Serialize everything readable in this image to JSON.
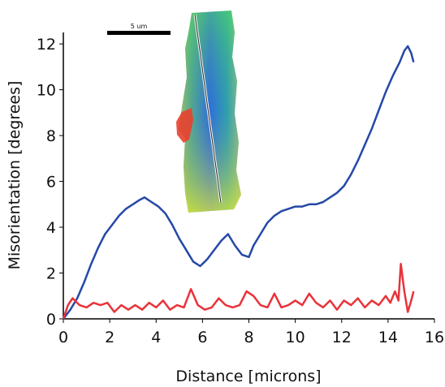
{
  "chart_data": {
    "type": "line",
    "title": "",
    "xlabel": "Distance [microns]",
    "ylabel": "Misorientation [degrees]",
    "xlim": [
      0,
      16
    ],
    "ylim": [
      0,
      12.5
    ],
    "x_ticks": [
      0,
      2,
      4,
      6,
      8,
      10,
      12,
      14,
      16
    ],
    "y_ticks": [
      0,
      2,
      4,
      6,
      8,
      10,
      12
    ],
    "x_tick_labels": [
      "0",
      "2",
      "4",
      "6",
      "8",
      "10",
      "12",
      "14",
      "16"
    ],
    "y_tick_labels": [
      "0",
      "2",
      "4",
      "6",
      "8",
      "10",
      "12"
    ],
    "grid": false,
    "legend": "none",
    "series": [
      {
        "color": "#2548a8",
        "x": [
          0,
          0.3,
          0.6,
          0.9,
          1.2,
          1.5,
          1.8,
          2.1,
          2.4,
          2.7,
          3.0,
          3.3,
          3.5,
          3.8,
          4.1,
          4.4,
          4.7,
          5.0,
          5.3,
          5.6,
          5.9,
          6.2,
          6.5,
          6.8,
          7.1,
          7.4,
          7.7,
          8.0,
          8.2,
          8.5,
          8.8,
          9.1,
          9.4,
          9.7,
          10.0,
          10.3,
          10.6,
          10.9,
          11.2,
          11.5,
          11.8,
          12.1,
          12.4,
          12.7,
          13.0,
          13.3,
          13.6,
          13.9,
          14.2,
          14.5,
          14.7,
          14.85,
          15.0,
          15.1
        ],
        "values": [
          0,
          0.4,
          0.9,
          1.6,
          2.4,
          3.1,
          3.7,
          4.1,
          4.5,
          4.8,
          5.0,
          5.2,
          5.3,
          5.1,
          4.9,
          4.6,
          4.1,
          3.5,
          3.0,
          2.5,
          2.3,
          2.6,
          3.0,
          3.4,
          3.7,
          3.2,
          2.8,
          2.7,
          3.2,
          3.7,
          4.2,
          4.5,
          4.7,
          4.8,
          4.9,
          4.9,
          5.0,
          5.0,
          5.1,
          5.3,
          5.5,
          5.8,
          6.3,
          6.9,
          7.6,
          8.3,
          9.1,
          9.9,
          10.6,
          11.2,
          11.7,
          11.9,
          11.6,
          11.2
        ]
      },
      {
        "color": "#e8333a",
        "x": [
          0,
          0.2,
          0.4,
          0.7,
          1.0,
          1.3,
          1.6,
          1.9,
          2.2,
          2.5,
          2.8,
          3.1,
          3.4,
          3.7,
          4.0,
          4.3,
          4.6,
          4.9,
          5.2,
          5.5,
          5.8,
          6.1,
          6.4,
          6.7,
          7.0,
          7.3,
          7.6,
          7.9,
          8.2,
          8.5,
          8.8,
          9.1,
          9.4,
          9.7,
          10.0,
          10.3,
          10.6,
          10.9,
          11.2,
          11.5,
          11.8,
          12.1,
          12.4,
          12.7,
          13.0,
          13.3,
          13.6,
          13.9,
          14.1,
          14.3,
          14.45,
          14.55,
          14.7,
          14.85,
          15.0,
          15.1
        ],
        "values": [
          0,
          0.6,
          0.9,
          0.6,
          0.5,
          0.7,
          0.6,
          0.7,
          0.3,
          0.6,
          0.4,
          0.6,
          0.4,
          0.7,
          0.5,
          0.8,
          0.4,
          0.6,
          0.5,
          1.3,
          0.6,
          0.4,
          0.5,
          0.9,
          0.6,
          0.5,
          0.6,
          1.2,
          1.0,
          0.6,
          0.5,
          1.1,
          0.5,
          0.6,
          0.8,
          0.6,
          1.1,
          0.7,
          0.5,
          0.8,
          0.4,
          0.8,
          0.6,
          0.9,
          0.5,
          0.8,
          0.6,
          1.0,
          0.7,
          1.2,
          0.8,
          2.4,
          1.2,
          0.3,
          0.8,
          1.2
        ]
      }
    ],
    "inset": {
      "scale_bar_label": "5 um"
    }
  }
}
